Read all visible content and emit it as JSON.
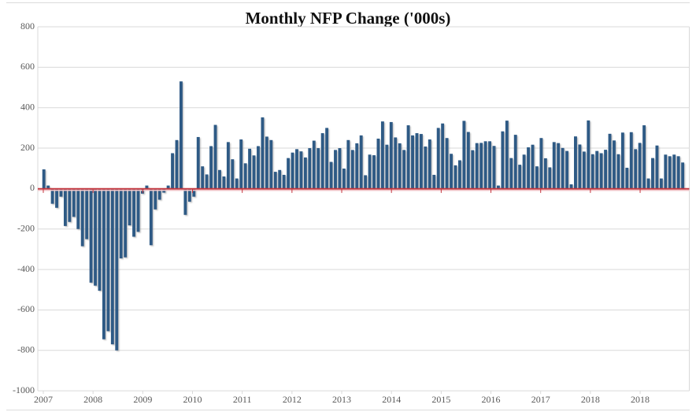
{
  "title": "Monthly NFP Change ('000s)",
  "chart_data": {
    "type": "bar",
    "title": "Monthly NFP Change ('000s)",
    "xlabel": "",
    "ylabel": "",
    "ylim": [
      -1000,
      800
    ],
    "ytick_step": 200,
    "yticks": [
      800,
      600,
      400,
      200,
      0,
      -200,
      -400,
      -600,
      -800,
      -1000
    ],
    "xtick_labels": [
      "2007",
      "2008",
      "2009",
      "2010",
      "2011",
      "2012",
      "2013",
      "2014",
      "2015",
      "2016",
      "2017",
      "2018",
      "2018"
    ],
    "legend": "none",
    "grid": "horizontal",
    "zero_line": true,
    "values": [
      95,
      15,
      -75,
      -95,
      -40,
      -185,
      -165,
      -140,
      -200,
      -285,
      -250,
      -465,
      -480,
      -505,
      -745,
      -705,
      -770,
      -800,
      -345,
      -340,
      -182,
      -238,
      -214,
      -25,
      15,
      -280,
      -103,
      -55,
      -20,
      15,
      175,
      240,
      530,
      -130,
      -65,
      -40,
      255,
      110,
      70,
      210,
      315,
      92,
      60,
      230,
      145,
      50,
      243,
      125,
      197,
      164,
      210,
      352,
      257,
      240,
      83,
      92,
      68,
      151,
      178,
      195,
      184,
      154,
      200,
      237,
      200,
      274,
      300,
      132,
      191,
      200,
      99,
      240,
      191,
      224,
      263,
      66,
      168,
      165,
      247,
      332,
      217,
      329,
      253,
      224,
      191,
      313,
      263,
      274,
      270,
      208,
      243,
      68,
      300,
      322,
      250,
      172,
      115,
      140,
      335,
      280,
      190,
      225,
      226,
      234,
      234,
      211,
      15,
      283,
      336,
      151,
      266,
      118,
      168,
      204,
      217,
      110,
      250,
      150,
      105,
      230,
      225,
      201,
      186,
      21,
      258,
      218,
      183,
      337,
      170,
      186,
      175,
      192,
      271,
      238,
      170,
      277,
      103,
      279,
      195,
      226,
      313,
      50,
      151,
      213,
      50,
      168,
      160,
      168,
      160,
      129
    ],
    "colors": {
      "bar": "#2d5a85",
      "zero_line": "#c4353d",
      "zero_line_shadow": "#f0c3c6",
      "gridline": "#d9d9d9",
      "axis_line": "#d9d9d9",
      "tick_label": "#595959",
      "title": "#111111",
      "background": "#ffffff"
    }
  }
}
